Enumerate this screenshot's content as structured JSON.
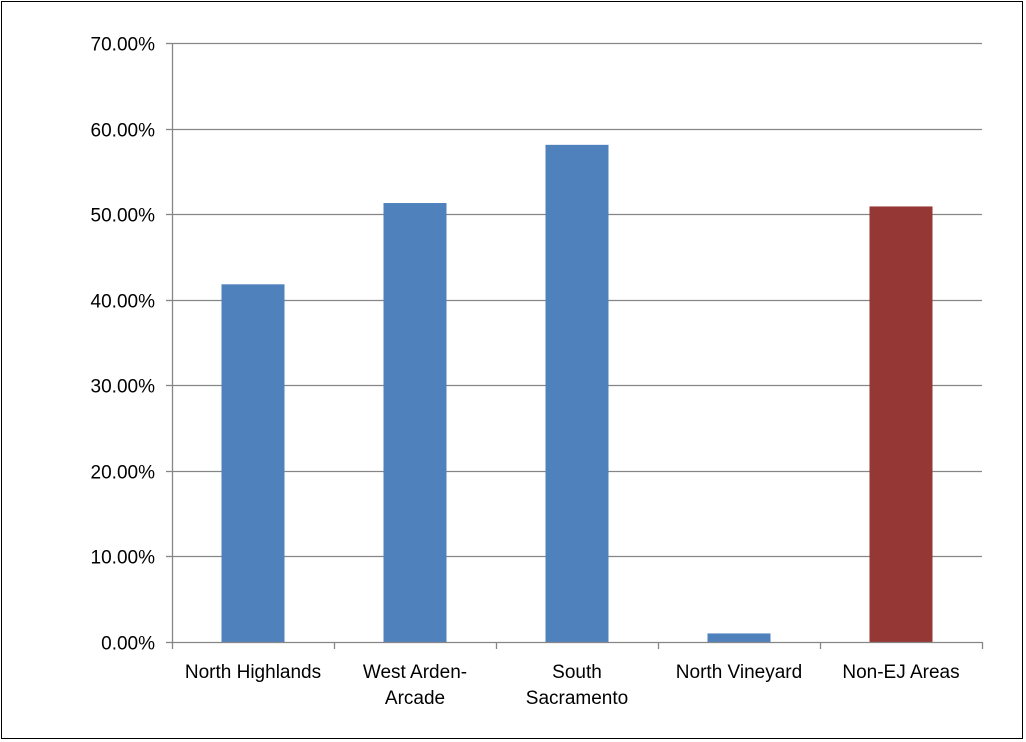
{
  "chart_data": {
    "type": "bar",
    "categories": [
      [
        "North Highlands"
      ],
      [
        "West Arden-",
        "Arcade"
      ],
      [
        "South",
        "Sacramento"
      ],
      [
        "North Vineyard"
      ],
      [
        "Non-EJ Areas"
      ]
    ],
    "values": [
      41.8,
      51.3,
      58.1,
      1.0,
      50.9
    ],
    "ylim": [
      0,
      70
    ],
    "yticks": [
      0,
      10,
      20,
      30,
      40,
      50,
      60,
      70
    ],
    "ytick_labels": [
      "0.00%",
      "10.00%",
      "20.00%",
      "30.00%",
      "40.00%",
      "50.00%",
      "60.00%",
      "70.00%"
    ],
    "grid": true,
    "legend": "none",
    "colors": {
      "bars": [
        "#4f81bd",
        "#4f81bd",
        "#4f81bd",
        "#4f81bd",
        "#953735"
      ],
      "grid": "#868686",
      "axis": "#868686"
    }
  }
}
